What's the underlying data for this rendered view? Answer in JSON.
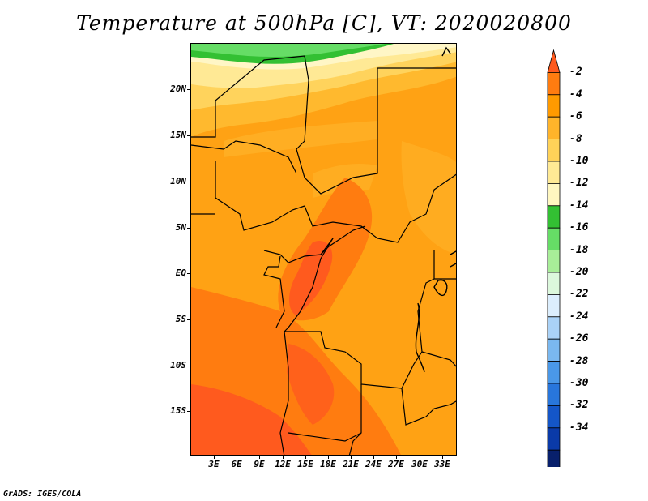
{
  "title": "Temperature at 500hPa [C], VT: 2020020800",
  "credit": "GrADS: IGES/COLA",
  "y_axis_labels": [
    "20N",
    "15N",
    "10N",
    "5N",
    "EQ",
    "5S",
    "10S",
    "15S"
  ],
  "x_axis_labels": [
    "3E",
    "6E",
    "9E",
    "12E",
    "15E",
    "18E",
    "21E",
    "24E",
    "27E",
    "30E",
    "33E"
  ],
  "colorbar": {
    "labels": [
      "-2",
      "-4",
      "-6",
      "-8",
      "-10",
      "-12",
      "-14",
      "-16",
      "-18",
      "-20",
      "-22",
      "-24",
      "-26",
      "-28",
      "-30",
      "-32",
      "-34"
    ],
    "colors": [
      "#ff5a1e",
      "#ff7c10",
      "#ff9a00",
      "#ffb42a",
      "#ffd258",
      "#ffea95",
      "#fff7c0",
      "#33c033",
      "#66dd66",
      "#a8ee98",
      "#dcf8dc",
      "#dceefd",
      "#aad2f7",
      "#7ab8f0",
      "#4a98e8",
      "#2876dc",
      "#1456c8",
      "#0a3aa8",
      "#08206c",
      "#dcdcf6"
    ]
  }
}
